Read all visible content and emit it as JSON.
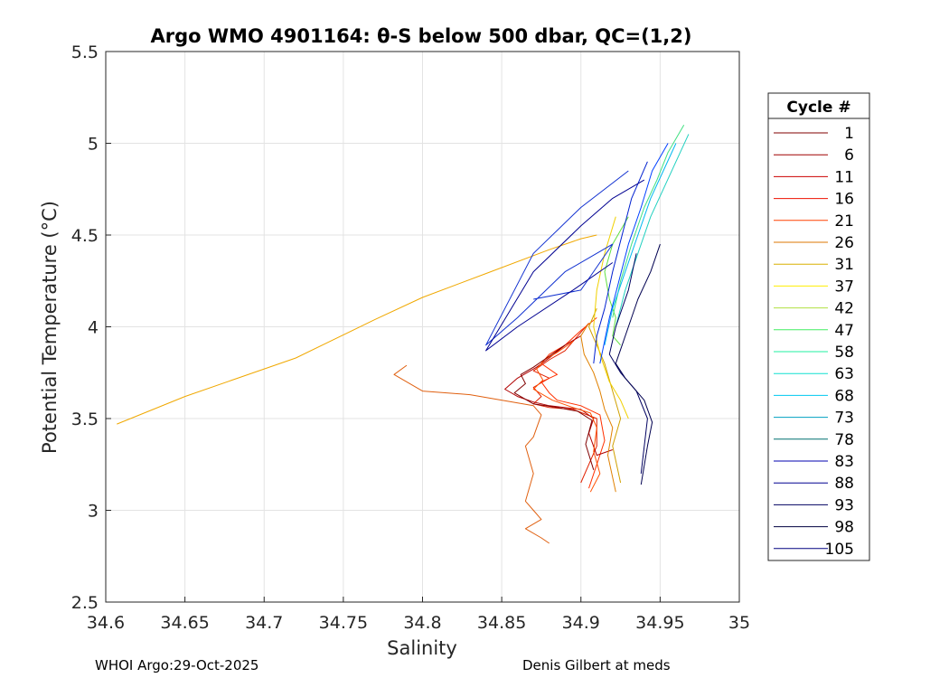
{
  "chart_data": {
    "type": "line",
    "title": "Argo WMO 4901164: θ-S below 500 dbar,  QC=(1,2)",
    "xlabel": "Salinity",
    "ylabel": "Potential Temperature (°C)",
    "xlim": [
      34.6,
      35.0
    ],
    "ylim": [
      2.5,
      5.5
    ],
    "xticks": [
      "34.6",
      "34.65",
      "34.7",
      "34.75",
      "34.8",
      "34.85",
      "34.9",
      "34.95",
      "35"
    ],
    "yticks": [
      "2.5",
      "3",
      "3.5",
      "4",
      "4.5",
      "5",
      "5.5"
    ],
    "grid": true,
    "legend": {
      "title": "Cycle #",
      "placement": "right-outside",
      "entries": [
        {
          "label": "1",
          "color": "#800000"
        },
        {
          "label": "6",
          "color": "#a00000"
        },
        {
          "label": "11",
          "color": "#cc0000"
        },
        {
          "label": "16",
          "color": "#ee1000"
        },
        {
          "label": "21",
          "color": "#ff4000"
        },
        {
          "label": "26",
          "color": "#dd7700"
        },
        {
          "label": "31",
          "color": "#d8b000"
        },
        {
          "label": "37",
          "color": "#ffee00"
        },
        {
          "label": "42",
          "color": "#b0e040"
        },
        {
          "label": "47",
          "color": "#40ee60"
        },
        {
          "label": "58",
          "color": "#20f0a0"
        },
        {
          "label": "63",
          "color": "#10e0d0"
        },
        {
          "label": "68",
          "color": "#00c8f0"
        },
        {
          "label": "73",
          "color": "#00a0c0"
        },
        {
          "label": "78",
          "color": "#007070"
        },
        {
          "label": "83",
          "color": "#0000b0"
        },
        {
          "label": "88",
          "color": "#000090"
        },
        {
          "label": "93",
          "color": "#000060"
        },
        {
          "label": "98",
          "color": "#000040"
        },
        {
          "label": "105",
          "color": "#000080"
        }
      ]
    },
    "series": [
      {
        "name": "orange long profile",
        "color": "#f0a800",
        "x": [
          34.607,
          34.65,
          34.72,
          34.77,
          34.8,
          34.84,
          34.88,
          34.9,
          34.91
        ],
        "y": [
          3.47,
          3.62,
          3.83,
          4.04,
          4.16,
          4.29,
          4.42,
          4.48,
          4.5
        ]
      },
      {
        "name": "dark orange excursion",
        "color": "#e06010",
        "x": [
          34.79,
          34.782,
          34.79,
          34.8,
          34.83,
          34.87,
          34.875,
          34.87,
          34.865,
          34.87,
          34.865,
          34.87,
          34.875,
          34.865,
          34.875,
          34.88
        ],
        "y": [
          3.79,
          3.74,
          3.7,
          3.65,
          3.63,
          3.57,
          3.52,
          3.4,
          3.35,
          3.2,
          3.05,
          3.0,
          2.95,
          2.9,
          2.85,
          2.82
        ]
      },
      {
        "name": "red cluster a",
        "color": "#e02000",
        "x": [
          34.905,
          34.9,
          34.895,
          34.89,
          34.88,
          34.87,
          34.88,
          34.87,
          34.875,
          34.87,
          34.88,
          34.895,
          34.91,
          34.91,
          34.905,
          34.9
        ],
        "y": [
          4.02,
          3.97,
          3.92,
          3.87,
          3.82,
          3.76,
          3.72,
          3.67,
          3.62,
          3.58,
          3.56,
          3.55,
          3.5,
          3.35,
          3.25,
          3.15
        ]
      },
      {
        "name": "red cluster b",
        "color": "#ff3000",
        "x": [
          34.91,
          34.9,
          34.89,
          34.88,
          34.875,
          34.885,
          34.875,
          34.88,
          34.885,
          34.9,
          34.912,
          34.915,
          34.91,
          34.905
        ],
        "y": [
          4.05,
          3.98,
          3.9,
          3.85,
          3.8,
          3.74,
          3.7,
          3.64,
          3.6,
          3.57,
          3.52,
          3.38,
          3.25,
          3.12
        ]
      },
      {
        "name": "red cluster c",
        "color": "#b00000",
        "x": [
          34.9,
          34.89,
          34.88,
          34.872,
          34.86,
          34.852,
          34.86,
          34.87,
          34.88,
          34.9,
          34.908,
          34.905,
          34.91,
          34.92
        ],
        "y": [
          3.95,
          3.9,
          3.83,
          3.78,
          3.72,
          3.66,
          3.62,
          3.59,
          3.57,
          3.55,
          3.5,
          3.42,
          3.3,
          3.33
        ]
      },
      {
        "name": "red cluster d",
        "color": "#ff5000",
        "x": [
          34.895,
          34.885,
          34.877,
          34.872,
          34.876,
          34.87,
          34.882,
          34.895,
          34.906,
          34.91,
          34.908,
          34.912,
          34.906
        ],
        "y": [
          3.92,
          3.86,
          3.82,
          3.77,
          3.71,
          3.66,
          3.6,
          3.56,
          3.53,
          3.45,
          3.32,
          3.2,
          3.1
        ]
      },
      {
        "name": "red cluster e",
        "color": "#800000",
        "x": [
          34.89,
          34.88,
          34.87,
          34.862,
          34.865,
          34.858,
          34.87,
          34.885,
          34.898,
          34.907,
          34.903,
          34.908
        ],
        "y": [
          3.9,
          3.84,
          3.78,
          3.74,
          3.69,
          3.64,
          3.58,
          3.56,
          3.54,
          3.49,
          3.36,
          3.22
        ]
      },
      {
        "name": "orange profile a",
        "color": "#e08000",
        "x": [
          34.905,
          34.9,
          34.902,
          34.908,
          34.912,
          34.915,
          34.92,
          34.917,
          34.922
        ],
        "y": [
          4.02,
          3.95,
          3.85,
          3.75,
          3.65,
          3.55,
          3.45,
          3.3,
          3.1
        ]
      },
      {
        "name": "orange profile b",
        "color": "#d0a000",
        "x": [
          34.91,
          34.905,
          34.91,
          34.915,
          34.92,
          34.925,
          34.92,
          34.925
        ],
        "y": [
          4.1,
          4.0,
          3.9,
          3.8,
          3.65,
          3.5,
          3.35,
          3.15
        ]
      },
      {
        "name": "yellow profile",
        "color": "#f0d000",
        "x": [
          34.922,
          34.915,
          34.91,
          34.908,
          34.912,
          34.918,
          34.925,
          34.93
        ],
        "y": [
          4.6,
          4.4,
          4.2,
          4.0,
          3.85,
          3.7,
          3.6,
          3.5
        ]
      },
      {
        "name": "green profile a",
        "color": "#60e040",
        "x": [
          34.93,
          34.92,
          34.915,
          34.918,
          34.922,
          34.92,
          34.925
        ],
        "y": [
          4.6,
          4.45,
          4.3,
          4.15,
          4.05,
          3.95,
          3.9
        ]
      },
      {
        "name": "green profile b",
        "color": "#40e080",
        "x": [
          34.965,
          34.955,
          34.948,
          34.94,
          34.932,
          34.925,
          34.92
        ],
        "y": [
          5.1,
          4.95,
          4.8,
          4.65,
          4.45,
          4.25,
          4.05
        ]
      },
      {
        "name": "teal profile",
        "color": "#20d0c0",
        "x": [
          34.968,
          34.96,
          34.952,
          34.944,
          34.936,
          34.928,
          34.922
        ],
        "y": [
          5.05,
          4.9,
          4.75,
          4.6,
          4.4,
          4.2,
          4.0
        ]
      },
      {
        "name": "cyan profile",
        "color": "#00b8f0",
        "x": [
          34.96,
          34.952,
          34.944,
          34.936,
          34.928,
          34.92,
          34.915
        ],
        "y": [
          5.0,
          4.85,
          4.7,
          4.5,
          4.3,
          4.1,
          3.9
        ]
      },
      {
        "name": "blue profile a",
        "color": "#0040ff",
        "x": [
          34.955,
          34.945,
          34.938,
          34.93,
          34.924,
          34.918,
          34.912
        ],
        "y": [
          5.0,
          4.85,
          4.65,
          4.45,
          4.25,
          4.05,
          3.8
        ]
      },
      {
        "name": "blue profile b",
        "color": "#0020d0",
        "x": [
          34.942,
          34.932,
          34.926,
          34.92,
          34.915,
          34.91,
          34.908
        ],
        "y": [
          4.9,
          4.7,
          4.5,
          4.3,
          4.1,
          3.95,
          3.8
        ]
      },
      {
        "name": "blue excursion",
        "color": "#1030d0",
        "x": [
          34.93,
          34.9,
          34.87,
          34.84,
          34.86,
          34.89,
          34.92,
          34.9,
          34.87
        ],
        "y": [
          4.85,
          4.65,
          4.4,
          3.9,
          4.05,
          4.3,
          4.45,
          4.2,
          4.15
        ]
      },
      {
        "name": "navy excursion",
        "color": "#000090",
        "x": [
          34.94,
          34.92,
          34.9,
          34.87,
          34.84,
          34.86,
          34.895,
          34.92
        ],
        "y": [
          4.8,
          4.7,
          4.55,
          4.3,
          3.87,
          4.0,
          4.2,
          4.35
        ]
      },
      {
        "name": "navy profile",
        "color": "#000060",
        "x": [
          34.935,
          34.93,
          34.922,
          34.918,
          34.925,
          34.935,
          34.942,
          34.938
        ],
        "y": [
          4.4,
          4.2,
          4.0,
          3.85,
          3.75,
          3.65,
          3.5,
          3.2
        ]
      },
      {
        "name": "dark navy profile",
        "color": "#000050",
        "x": [
          34.95,
          34.944,
          34.936,
          34.93,
          34.922,
          34.928,
          34.94,
          34.945,
          34.942,
          34.938
        ],
        "y": [
          4.45,
          4.3,
          4.15,
          4.0,
          3.8,
          3.72,
          3.6,
          3.48,
          3.35,
          3.14
        ]
      }
    ]
  },
  "footer": {
    "left": "WHOI Argo:29-Oct-2025",
    "right": "Denis Gilbert at meds"
  }
}
